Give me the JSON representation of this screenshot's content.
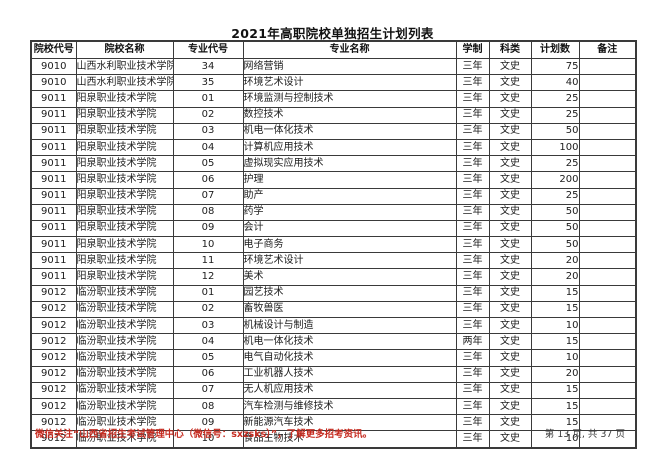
{
  "page": {
    "title": "2021年高职院校单独招生计划列表",
    "footer_notice": "微信关注“山西省招生考试管理中心（微信号：sxzsks）”，了解更多招考资讯。",
    "footer_page": "第 13 页, 共 37 页",
    "accent_red": "#c62d22",
    "border_color": "#3a3a3a"
  },
  "table": {
    "headers": [
      "院校代号",
      "院校名称",
      "专业代号",
      "专业名称",
      "学制",
      "科类",
      "计划数",
      "备注"
    ],
    "column_keys": [
      "college-code",
      "college-name",
      "major-code",
      "major-name",
      "duration",
      "category",
      "plan-count",
      "remark"
    ],
    "rows": [
      [
        "9010",
        "山西水利职业技术学院",
        "34",
        "网络营销",
        "三年",
        "文史",
        "75",
        ""
      ],
      [
        "9010",
        "山西水利职业技术学院",
        "35",
        "环境艺术设计",
        "三年",
        "文史",
        "40",
        ""
      ],
      [
        "9011",
        "阳泉职业技术学院",
        "01",
        "环境监测与控制技术",
        "三年",
        "文史",
        "25",
        ""
      ],
      [
        "9011",
        "阳泉职业技术学院",
        "02",
        "数控技术",
        "三年",
        "文史",
        "25",
        ""
      ],
      [
        "9011",
        "阳泉职业技术学院",
        "03",
        "机电一体化技术",
        "三年",
        "文史",
        "50",
        ""
      ],
      [
        "9011",
        "阳泉职业技术学院",
        "04",
        "计算机应用技术",
        "三年",
        "文史",
        "100",
        ""
      ],
      [
        "9011",
        "阳泉职业技术学院",
        "05",
        "虚拟现实应用技术",
        "三年",
        "文史",
        "25",
        ""
      ],
      [
        "9011",
        "阳泉职业技术学院",
        "06",
        "护理",
        "三年",
        "文史",
        "200",
        ""
      ],
      [
        "9011",
        "阳泉职业技术学院",
        "07",
        "助产",
        "三年",
        "文史",
        "25",
        ""
      ],
      [
        "9011",
        "阳泉职业技术学院",
        "08",
        "药学",
        "三年",
        "文史",
        "50",
        ""
      ],
      [
        "9011",
        "阳泉职业技术学院",
        "09",
        "会计",
        "三年",
        "文史",
        "50",
        ""
      ],
      [
        "9011",
        "阳泉职业技术学院",
        "10",
        "电子商务",
        "三年",
        "文史",
        "50",
        ""
      ],
      [
        "9011",
        "阳泉职业技术学院",
        "11",
        "环境艺术设计",
        "三年",
        "文史",
        "20",
        ""
      ],
      [
        "9011",
        "阳泉职业技术学院",
        "12",
        "美术",
        "三年",
        "文史",
        "20",
        ""
      ],
      [
        "9012",
        "临汾职业技术学院",
        "01",
        "园艺技术",
        "三年",
        "文史",
        "15",
        ""
      ],
      [
        "9012",
        "临汾职业技术学院",
        "02",
        "畜牧兽医",
        "三年",
        "文史",
        "15",
        ""
      ],
      [
        "9012",
        "临汾职业技术学院",
        "03",
        "机械设计与制造",
        "三年",
        "文史",
        "10",
        ""
      ],
      [
        "9012",
        "临汾职业技术学院",
        "04",
        "机电一体化技术",
        "两年",
        "文史",
        "15",
        ""
      ],
      [
        "9012",
        "临汾职业技术学院",
        "05",
        "电气自动化技术",
        "三年",
        "文史",
        "10",
        ""
      ],
      [
        "9012",
        "临汾职业技术学院",
        "06",
        "工业机器人技术",
        "三年",
        "文史",
        "20",
        ""
      ],
      [
        "9012",
        "临汾职业技术学院",
        "07",
        "无人机应用技术",
        "三年",
        "文史",
        "15",
        ""
      ],
      [
        "9012",
        "临汾职业技术学院",
        "08",
        "汽车检测与维修技术",
        "三年",
        "文史",
        "15",
        ""
      ],
      [
        "9012",
        "临汾职业技术学院",
        "09",
        "新能源汽车技术",
        "三年",
        "文史",
        "15",
        ""
      ],
      [
        "9012",
        "临汾职业技术学院",
        "10",
        "食品生物技术",
        "三年",
        "文史",
        "10",
        ""
      ]
    ]
  }
}
